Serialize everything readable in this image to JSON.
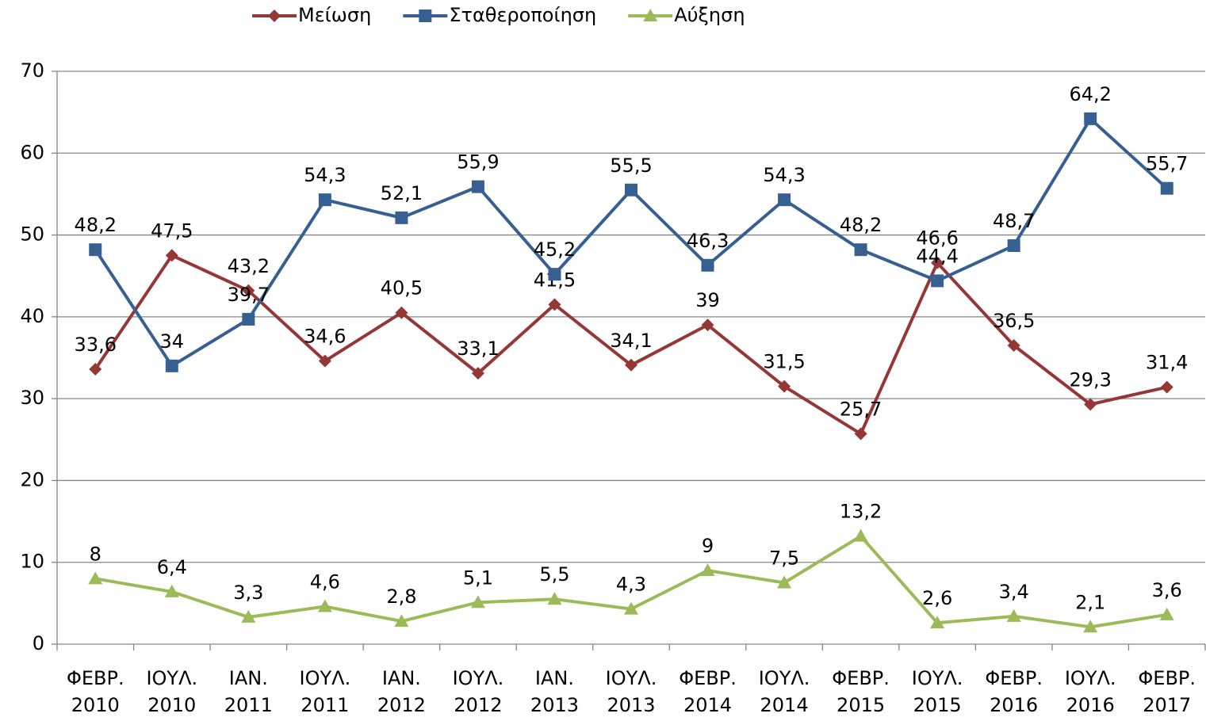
{
  "chart_data": {
    "type": "line",
    "categories": [
      [
        "ΦΕΒΡ.",
        "2010"
      ],
      [
        "ΙΟΥΛ.",
        "2010"
      ],
      [
        "ΙΑΝ.",
        "2011"
      ],
      [
        "ΙΟΥΛ.",
        "2011"
      ],
      [
        "ΙΑΝ.",
        "2012"
      ],
      [
        "ΙΟΥΛ.",
        "2012"
      ],
      [
        "ΙΑΝ.",
        "2013"
      ],
      [
        "ΙΟΥΛ.",
        "2013"
      ],
      [
        "ΦΕΒΡ.",
        "2014"
      ],
      [
        "ΙΟΥΛ.",
        "2014"
      ],
      [
        "ΦΕΒΡ.",
        "2015"
      ],
      [
        "ΙΟΥΛ.",
        "2015"
      ],
      [
        "ΦΕΒΡ.",
        "2016"
      ],
      [
        "ΙΟΥΛ.",
        "2016"
      ],
      [
        "ΦΕΒΡ.",
        "2017"
      ]
    ],
    "series": [
      {
        "name": "Μείωση",
        "color": "#953735",
        "marker": "diamond",
        "values": [
          33.6,
          47.5,
          43.2,
          34.6,
          40.5,
          33.1,
          41.5,
          34.1,
          39,
          31.5,
          25.7,
          46.6,
          36.5,
          29.3,
          31.4
        ],
        "value_labels": [
          "33,6",
          "47,5",
          "43,2",
          "34,6",
          "40,5",
          "33,1",
          "41,5",
          "34,1",
          "39",
          "31,5",
          "25,7",
          "46,6",
          "36,5",
          "29,3",
          "31,4"
        ]
      },
      {
        "name": "Σταθεροποίηση",
        "color": "#376092",
        "marker": "square",
        "values": [
          48.2,
          34,
          39.7,
          54.3,
          52.1,
          55.9,
          45.2,
          55.5,
          46.3,
          54.3,
          48.2,
          44.4,
          48.7,
          64.2,
          55.7
        ],
        "value_labels": [
          "48,2",
          "34",
          "39,7",
          "54,3",
          "52,1",
          "55,9",
          "45,2",
          "55,5",
          "46,3",
          "54,3",
          "48,2",
          "44,4",
          "48,7",
          "64,2",
          "55,7"
        ]
      },
      {
        "name": "Αύξηση",
        "color": "#9bbb59",
        "marker": "triangle",
        "values": [
          8,
          6.4,
          3.3,
          4.6,
          2.8,
          5.1,
          5.5,
          4.3,
          9,
          7.5,
          13.2,
          2.6,
          3.4,
          2.1,
          3.6
        ],
        "value_labels": [
          "8",
          "6,4",
          "3,3",
          "4,6",
          "2,8",
          "5,1",
          "5,5",
          "4,3",
          "9",
          "7,5",
          "13,2",
          "2,6",
          "3,4",
          "2,1",
          "3,6"
        ]
      }
    ],
    "ylim": [
      0,
      70
    ],
    "yticks": [
      0,
      10,
      20,
      30,
      40,
      50,
      60,
      70
    ],
    "grid": true,
    "legend": "top"
  }
}
